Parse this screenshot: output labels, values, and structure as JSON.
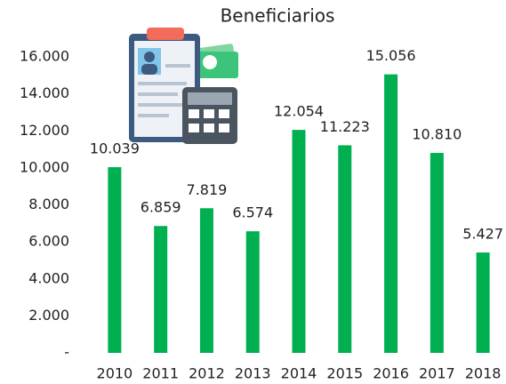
{
  "chart_data": {
    "type": "bar",
    "title": "Beneficiarios",
    "categories": [
      "2010",
      "2011",
      "2012",
      "2013",
      "2014",
      "2015",
      "2016",
      "2017",
      "2018"
    ],
    "values": [
      10039,
      6859,
      7819,
      6574,
      12054,
      11223,
      15056,
      10810,
      5427
    ],
    "value_labels": [
      "10.039",
      "6.859",
      "7.819",
      "6.574",
      "12.054",
      "11.223",
      "15.056",
      "10.810",
      "5.427"
    ],
    "color": "#00b050",
    "ylim": [
      0,
      16000
    ],
    "yticks": [
      {
        "value": 0,
        "label": "-"
      },
      {
        "value": 2000,
        "label": "2.000"
      },
      {
        "value": 4000,
        "label": "4.000"
      },
      {
        "value": 6000,
        "label": "6.000"
      },
      {
        "value": 8000,
        "label": "8.000"
      },
      {
        "value": 10000,
        "label": "10.000"
      },
      {
        "value": 12000,
        "label": "12.000"
      },
      {
        "value": 14000,
        "label": "14.000"
      },
      {
        "value": 16000,
        "label": "16.000"
      }
    ],
    "grid": false
  }
}
